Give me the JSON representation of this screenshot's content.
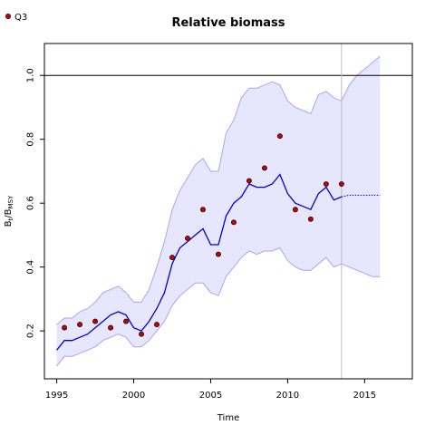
{
  "chart_data": {
    "type": "line",
    "title": "Relative biomass",
    "xlabel": "Time",
    "ylabel": {
      "base": "B",
      "sub1": "t",
      "mid": "/B",
      "sub2": "MSY"
    },
    "xlim": [
      1994.2,
      2018.1
    ],
    "ylim": [
      0.05,
      1.1
    ],
    "x_ticks": [
      1995,
      2000,
      2005,
      2010,
      2015
    ],
    "y_ticks": [
      0.2,
      0.4,
      0.6,
      0.8,
      1.0
    ],
    "reference_line": 1.0,
    "vertical_line": 2013.5,
    "legend": {
      "position": "top-left",
      "entries": [
        "Q3"
      ]
    },
    "colors": {
      "band": "#e6e6ff",
      "band_edge": "#a6a6f0",
      "line": "#0000cc",
      "point_fill": "#cc0000",
      "vline": "#bbbbbb"
    },
    "estimate": {
      "x": [
        1995,
        1995.5,
        1996,
        1996.5,
        1997,
        1997.5,
        1998,
        1998.5,
        1999,
        1999.5,
        2000,
        2000.5,
        2001,
        2001.5,
        2002,
        2002.5,
        2003,
        2003.5,
        2004,
        2004.5,
        2005,
        2005.5,
        2006,
        2006.5,
        2007,
        2007.5,
        2008,
        2008.5,
        2009,
        2009.5,
        2010,
        2010.5,
        2011,
        2011.5,
        2012,
        2012.5,
        2013,
        2013.5
      ],
      "y": [
        0.14,
        0.17,
        0.17,
        0.18,
        0.19,
        0.21,
        0.23,
        0.25,
        0.26,
        0.25,
        0.21,
        0.2,
        0.23,
        0.27,
        0.32,
        0.41,
        0.46,
        0.48,
        0.5,
        0.52,
        0.47,
        0.47,
        0.56,
        0.6,
        0.62,
        0.66,
        0.65,
        0.65,
        0.66,
        0.69,
        0.63,
        0.6,
        0.59,
        0.58,
        0.63,
        0.65,
        0.61,
        0.62
      ]
    },
    "upper": {
      "x": [
        1995,
        1995.5,
        1996,
        1996.5,
        1997,
        1997.5,
        1998,
        1998.5,
        1999,
        1999.5,
        2000,
        2000.5,
        2001,
        2001.5,
        2002,
        2002.5,
        2003,
        2003.5,
        2004,
        2004.5,
        2005,
        2005.5,
        2006,
        2006.5,
        2007,
        2007.5,
        2008,
        2008.5,
        2009,
        2009.5,
        2010,
        2010.5,
        2011,
        2011.5,
        2012,
        2012.5,
        2013,
        2013.5,
        2014,
        2014.5,
        2015,
        2015.5,
        2016
      ],
      "y": [
        0.22,
        0.24,
        0.24,
        0.26,
        0.27,
        0.29,
        0.32,
        0.33,
        0.34,
        0.32,
        0.29,
        0.29,
        0.33,
        0.4,
        0.48,
        0.58,
        0.64,
        0.68,
        0.72,
        0.74,
        0.7,
        0.7,
        0.82,
        0.86,
        0.93,
        0.96,
        0.96,
        0.97,
        0.98,
        0.97,
        0.92,
        0.9,
        0.89,
        0.88,
        0.94,
        0.95,
        0.93,
        0.92,
        0.97,
        1.0,
        1.02,
        1.04,
        1.06
      ]
    },
    "lower": {
      "x": [
        1995,
        1995.5,
        1996,
        1996.5,
        1997,
        1997.5,
        1998,
        1998.5,
        1999,
        1999.5,
        2000,
        2000.5,
        2001,
        2001.5,
        2002,
        2002.5,
        2003,
        2003.5,
        2004,
        2004.5,
        2005,
        2005.5,
        2006,
        2006.5,
        2007,
        2007.5,
        2008,
        2008.5,
        2009,
        2009.5,
        2010,
        2010.5,
        2011,
        2011.5,
        2012,
        2012.5,
        2013,
        2013.5,
        2014,
        2014.5,
        2015,
        2015.5,
        2016
      ],
      "y": [
        0.09,
        0.12,
        0.12,
        0.13,
        0.14,
        0.15,
        0.17,
        0.18,
        0.19,
        0.18,
        0.15,
        0.15,
        0.17,
        0.2,
        0.23,
        0.28,
        0.31,
        0.33,
        0.35,
        0.35,
        0.32,
        0.31,
        0.37,
        0.4,
        0.43,
        0.45,
        0.44,
        0.45,
        0.45,
        0.46,
        0.42,
        0.4,
        0.39,
        0.39,
        0.41,
        0.43,
        0.4,
        0.41,
        0.4,
        0.39,
        0.38,
        0.37,
        0.37
      ]
    },
    "forecast": {
      "x": [
        2013.5,
        2014,
        2015,
        2016
      ],
      "y": [
        0.62,
        0.625,
        0.625,
        0.625
      ]
    },
    "series": [
      {
        "name": "Q3",
        "x": [
          1995.5,
          1996.5,
          1997.5,
          1998.5,
          1999.5,
          2000.5,
          2001.5,
          2002.5,
          2003.5,
          2004.5,
          2005.5,
          2006.5,
          2007.5,
          2008.5,
          2009.5,
          2010.5,
          2011.5,
          2012.5,
          2013.5
        ],
        "y": [
          0.21,
          0.22,
          0.23,
          0.21,
          0.23,
          0.19,
          0.22,
          0.43,
          0.49,
          0.58,
          0.44,
          0.54,
          0.67,
          0.71,
          0.81,
          0.58,
          0.55,
          0.66,
          0.66
        ]
      }
    ]
  }
}
